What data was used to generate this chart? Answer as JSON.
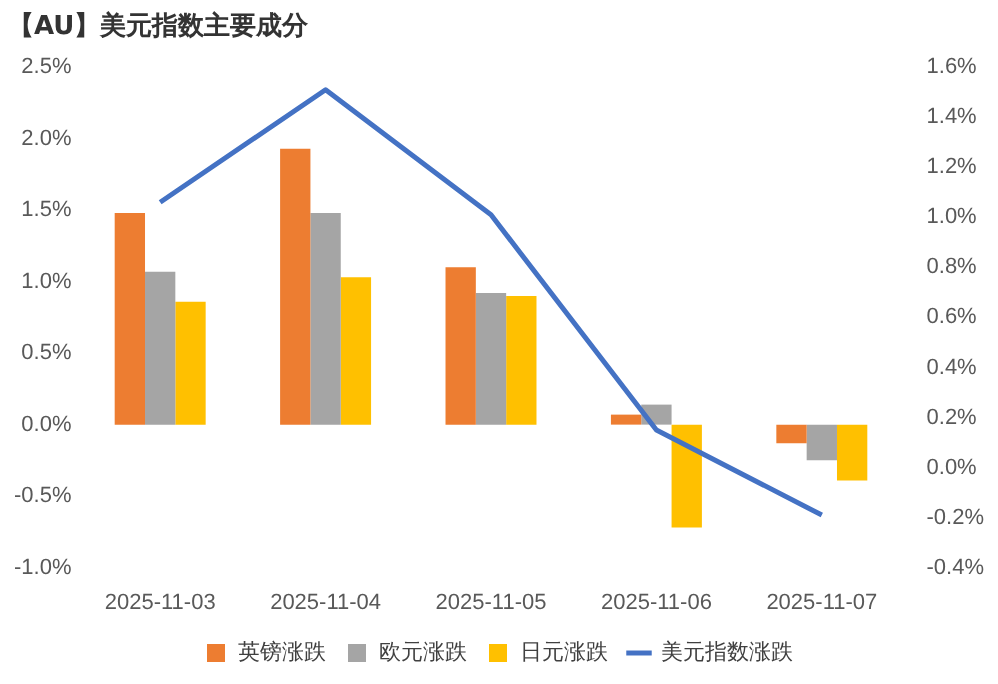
{
  "chart_data": {
    "type": "bar",
    "title": "【AU】美元指数主要成分",
    "categories": [
      "2025-11-03",
      "2025-11-04",
      "2025-11-05",
      "2025-11-06",
      "2025-11-07"
    ],
    "series": [
      {
        "name": "英镑涨跌",
        "color": "#ed7d31",
        "values": [
          1.48,
          1.93,
          1.1,
          0.07,
          -0.13
        ]
      },
      {
        "name": "欧元涨跌",
        "color": "#a5a5a5",
        "values": [
          1.07,
          1.48,
          0.92,
          0.14,
          -0.25
        ]
      },
      {
        "name": "日元涨跌",
        "color": "#ffc000",
        "values": [
          0.86,
          1.03,
          0.9,
          -0.72,
          -0.39
        ]
      },
      {
        "name": "美元指数涨跌",
        "type": "line",
        "axis": "y2",
        "color": "#4472c4",
        "values": [
          1.06,
          1.51,
          1.01,
          0.15,
          -0.19
        ]
      }
    ],
    "ylim": [
      -1.0,
      2.5
    ],
    "yticks": [
      {
        "value": -1.0,
        "label": "-1.0%"
      },
      {
        "value": -0.5,
        "label": "-0.5%"
      },
      {
        "value": 0,
        "label": "0.0%"
      },
      {
        "value": 0.5,
        "label": "0.5%"
      },
      {
        "value": 1.0,
        "label": "1.0%"
      },
      {
        "value": 1.5,
        "label": "1.5%"
      },
      {
        "value": 2.0,
        "label": "2.0%"
      },
      {
        "value": 2.5,
        "label": "2.5%"
      }
    ],
    "y2lim": [
      -0.4,
      1.6
    ],
    "y2ticks": [
      {
        "value": -0.4,
        "label": "-0.4%"
      },
      {
        "value": -0.2,
        "label": "-0.2%"
      },
      {
        "value": 0,
        "label": "0.0%"
      },
      {
        "value": 0.2,
        "label": "0.2%"
      },
      {
        "value": 0.4,
        "label": "0.4%"
      },
      {
        "value": 0.6,
        "label": "0.6%"
      },
      {
        "value": 0.8,
        "label": "0.8%"
      },
      {
        "value": 1.0,
        "label": "1.0%"
      },
      {
        "value": 1.2,
        "label": "1.2%"
      },
      {
        "value": 1.4,
        "label": "1.4%"
      },
      {
        "value": 1.6,
        "label": "1.6%"
      }
    ],
    "grid": false,
    "legend": "bottom",
    "marker": "none",
    "line_style": "solid"
  }
}
